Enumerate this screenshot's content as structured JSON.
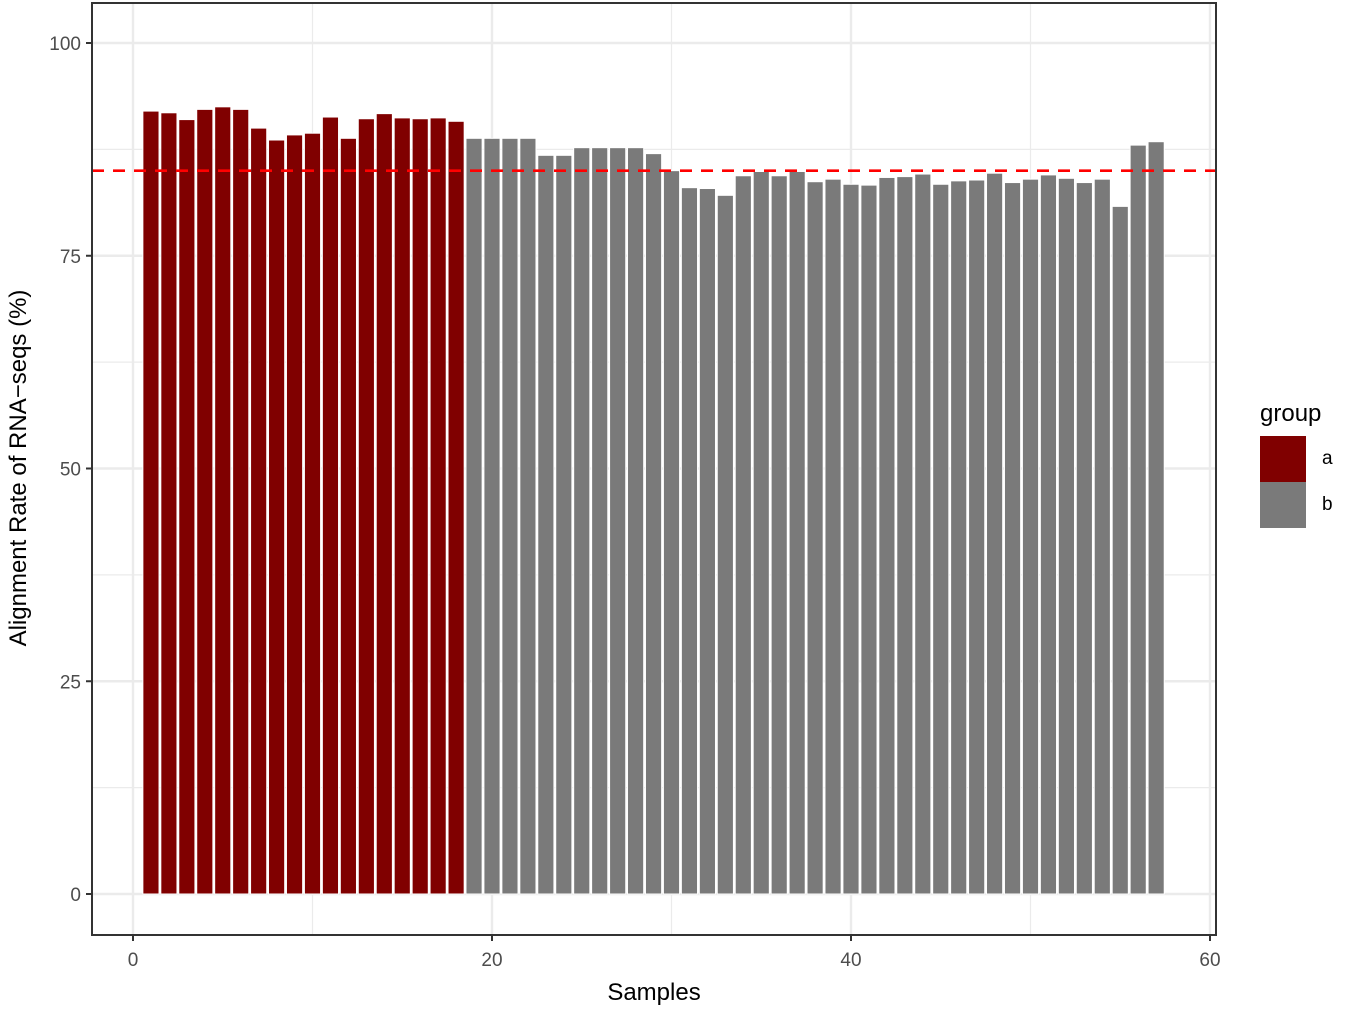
{
  "chart_data": {
    "type": "bar",
    "title": "",
    "xlabel": "Samples",
    "ylabel": "Alignment Rate of RNA-seqs (%)",
    "xlim": [
      -2.3,
      60.2
    ],
    "ylim": [
      -4.8,
      104.8
    ],
    "x_ticks": [
      0,
      20,
      40,
      60
    ],
    "y_ticks": [
      0,
      25,
      50,
      75,
      100
    ],
    "grid": true,
    "legend_position": "right",
    "reference_line": {
      "y": 85,
      "style": "dashed",
      "color": "#FF0000"
    },
    "x": [
      1,
      2,
      3,
      4,
      5,
      6,
      7,
      8,
      9,
      10,
      11,
      12,
      13,
      14,
      15,
      16,
      17,
      18,
      19,
      20,
      21,
      22,
      23,
      24,
      25,
      26,
      27,
      28,
      29,
      30,
      31,
      32,
      33,
      34,
      35,
      36,
      37,
      38,
      39,
      40,
      41,
      42,
      43,
      44,
      45,
      46,
      47,
      48,
      49,
      50,
      51,
      52,
      53,
      54,
      55,
      56,
      57
    ],
    "values": [
      92.0,
      91.8,
      91.0,
      92.2,
      92.5,
      92.2,
      90.0,
      88.6,
      89.2,
      89.4,
      91.3,
      88.8,
      91.1,
      91.7,
      91.2,
      91.1,
      91.2,
      90.8,
      88.8,
      88.8,
      88.8,
      88.8,
      86.8,
      86.8,
      87.7,
      87.7,
      87.7,
      87.7,
      87.0,
      85.0,
      83.0,
      82.9,
      82.1,
      84.4,
      84.9,
      84.4,
      84.9,
      83.7,
      84.0,
      83.4,
      83.3,
      84.2,
      84.3,
      84.6,
      83.4,
      83.8,
      83.9,
      84.7,
      83.6,
      84.0,
      84.5,
      84.1,
      83.6,
      84.0,
      80.8,
      88.0,
      88.4
    ],
    "groups": [
      "a",
      "a",
      "a",
      "a",
      "a",
      "a",
      "a",
      "a",
      "a",
      "a",
      "a",
      "a",
      "a",
      "a",
      "a",
      "a",
      "a",
      "a",
      "b",
      "b",
      "b",
      "b",
      "b",
      "b",
      "b",
      "b",
      "b",
      "b",
      "b",
      "b",
      "b",
      "b",
      "b",
      "b",
      "b",
      "b",
      "b",
      "b",
      "b",
      "b",
      "b",
      "b",
      "b",
      "b",
      "b",
      "b",
      "b",
      "b",
      "b",
      "b",
      "b",
      "b",
      "b",
      "b",
      "b",
      "b",
      "b"
    ],
    "legend": {
      "title": "group",
      "entries": [
        {
          "label": "a",
          "color": "#800000"
        },
        {
          "label": "b",
          "color": "#7A7A7A"
        }
      ]
    }
  },
  "labels": {
    "xlabel": "Samples",
    "ylabel": "Alignment Rate of RNA−seqs (%)",
    "legend_title": "group",
    "legend_a": "a",
    "legend_b": "b"
  }
}
